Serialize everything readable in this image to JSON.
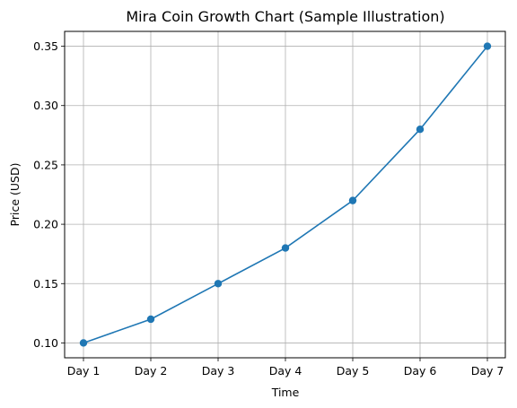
{
  "chart_data": {
    "type": "line",
    "title": "Mira Coin Growth Chart (Sample Illustration)",
    "xlabel": "Time",
    "ylabel": "Price (USD)",
    "categories": [
      "Day 1",
      "Day 2",
      "Day 3",
      "Day 4",
      "Day 5",
      "Day 6",
      "Day 7"
    ],
    "series": [
      {
        "values": [
          0.1,
          0.12,
          0.15,
          0.18,
          0.22,
          0.28,
          0.35
        ],
        "marker": "circle"
      }
    ],
    "yticks": [
      "0.10",
      "0.15",
      "0.20",
      "0.25",
      "0.30",
      "0.35"
    ],
    "ylim": [
      0.0875,
      0.3625
    ],
    "grid": true,
    "colors": {
      "line": "#1f77b4",
      "grid": "#b0b0b0",
      "axis": "#000000"
    }
  }
}
